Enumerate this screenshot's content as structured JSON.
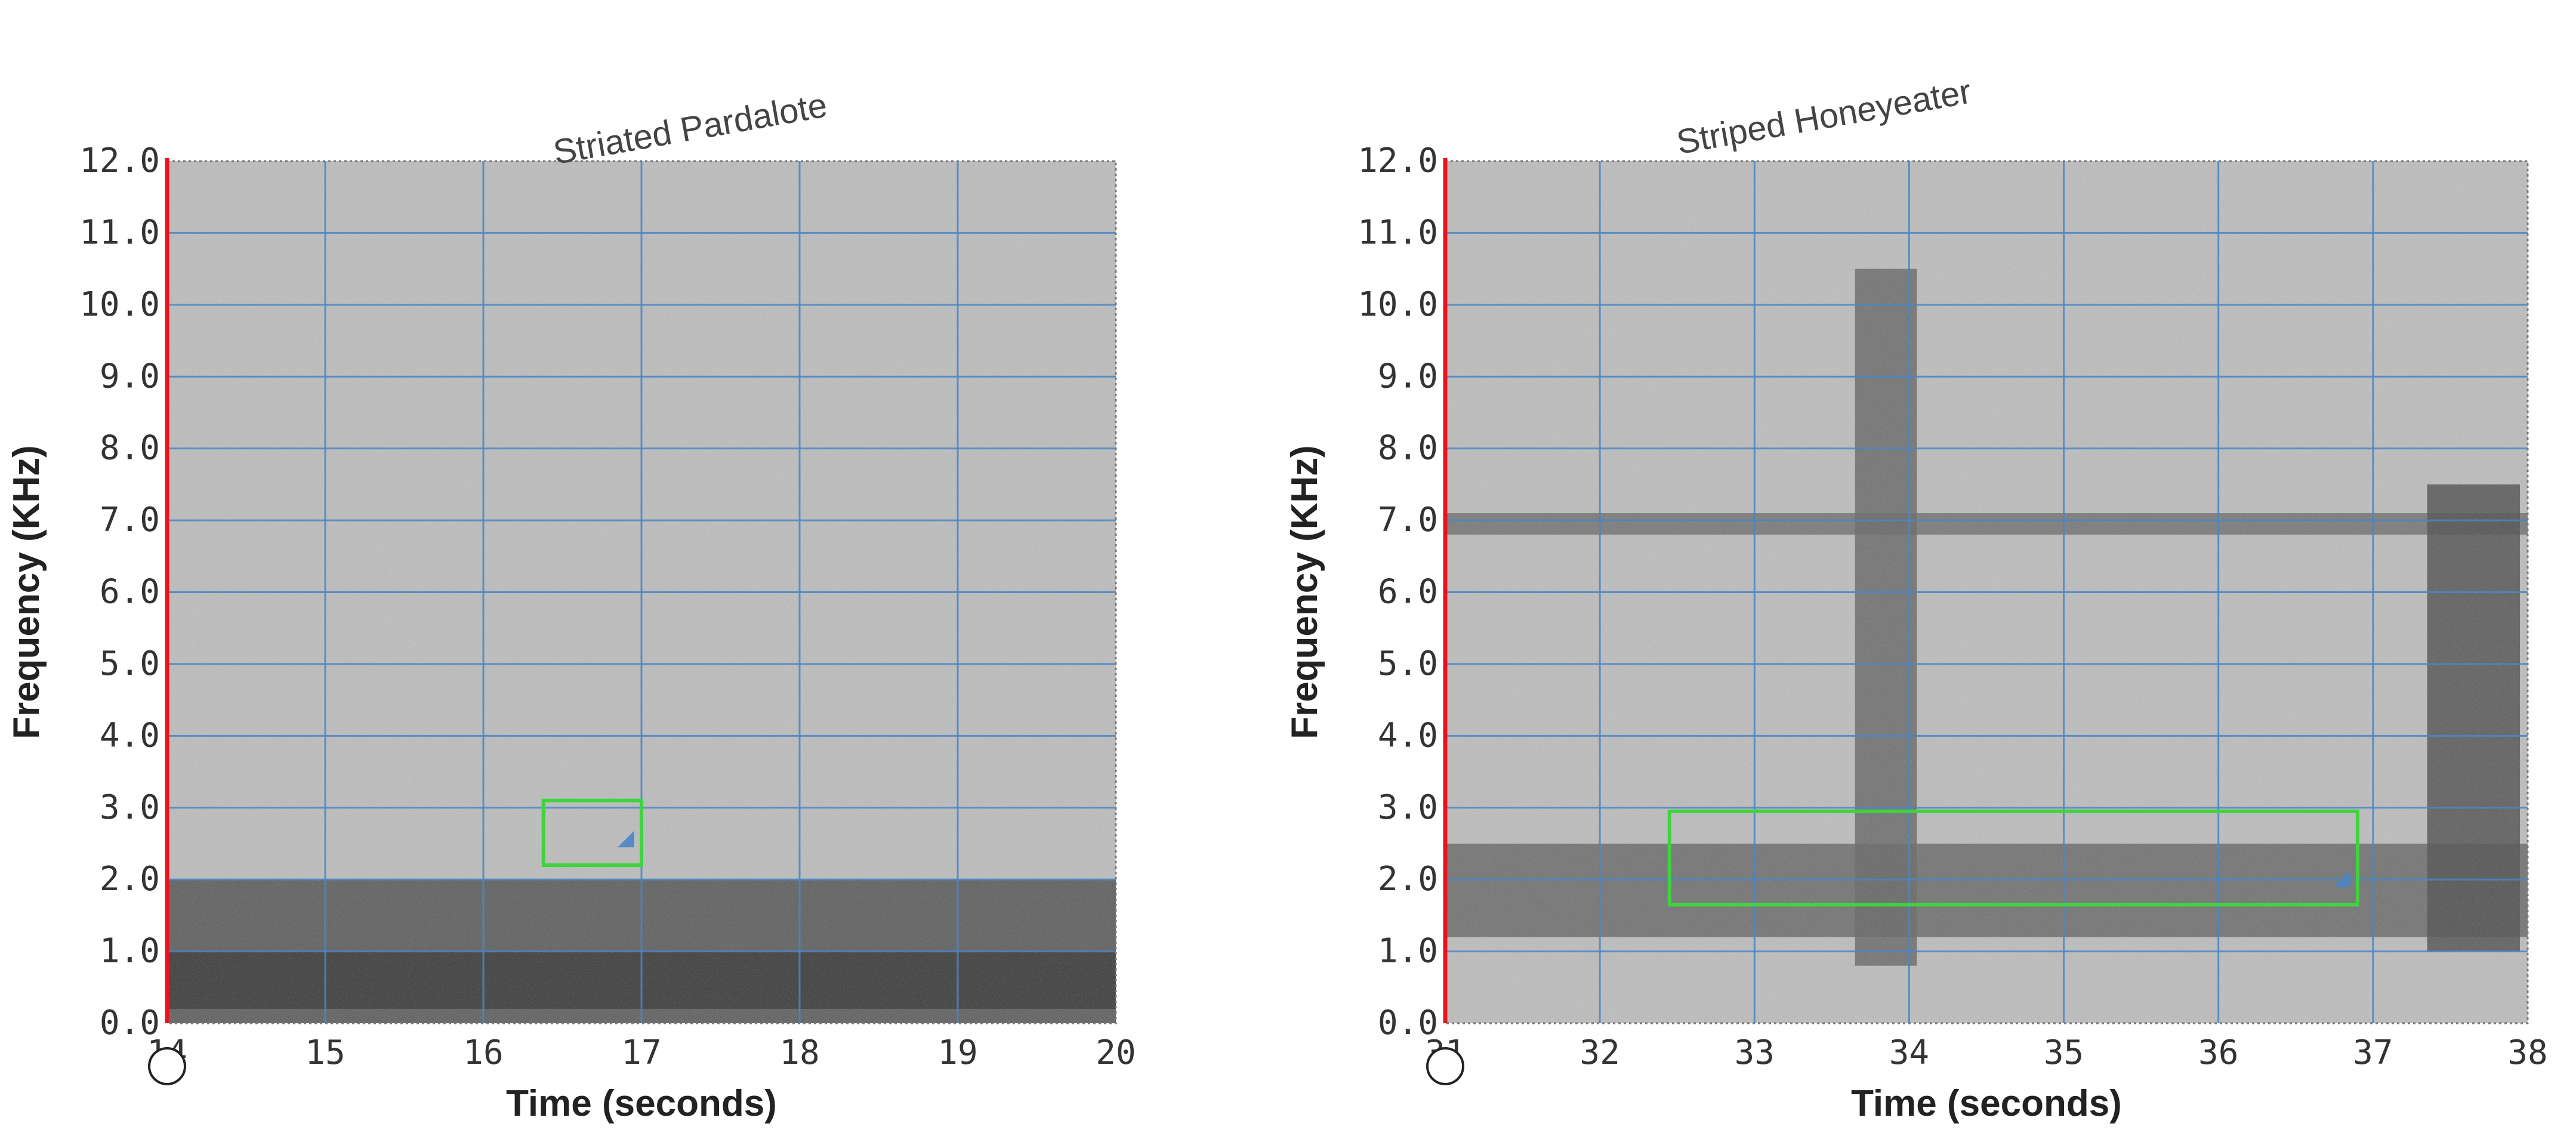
{
  "colors": {
    "grid": "#4a86c5",
    "playhead": "#e8141d",
    "annotation_box": "#3fd43f",
    "spectrogram_light": "#bdbdbd",
    "spectrogram_dark": "#2e2e2e"
  },
  "chart_data": [
    {
      "type": "heatmap",
      "title": "Striated Pardalote",
      "xlabel": "Time (seconds)",
      "ylabel": "Frequency (KHz)",
      "xlim": [
        14,
        20
      ],
      "ylim": [
        0,
        12
      ],
      "x_ticks": [
        "14",
        "15",
        "16",
        "17",
        "18",
        "19",
        "20"
      ],
      "y_ticks": [
        "0.0",
        "1.0",
        "2.0",
        "3.0",
        "4.0",
        "5.0",
        "6.0",
        "7.0",
        "8.0",
        "9.0",
        "10.0",
        "11.0",
        "12.0"
      ],
      "grid": true,
      "playhead_time": 14,
      "annotation": {
        "t_start": 16.38,
        "t_end": 17.0,
        "f_low": 2.2,
        "f_high": 3.1
      },
      "energy_bands": [
        {
          "t_start": 14,
          "t_end": 20,
          "f_low": 0.0,
          "f_high": 2.0,
          "intensity": 0.75
        },
        {
          "t_start": 14,
          "t_end": 20,
          "f_low": 0.2,
          "f_high": 1.0,
          "intensity": 0.9
        }
      ]
    },
    {
      "type": "heatmap",
      "title": "Striped Honeyeater",
      "xlabel": "Time (seconds)",
      "ylabel": "Frequency (KHz)",
      "xlim": [
        31,
        38
      ],
      "ylim": [
        0,
        12
      ],
      "x_ticks": [
        "31",
        "32",
        "33",
        "34",
        "35",
        "36",
        "37",
        "38"
      ],
      "y_ticks": [
        "0.0",
        "1.0",
        "2.0",
        "3.0",
        "4.0",
        "5.0",
        "6.0",
        "7.0",
        "8.0",
        "9.0",
        "10.0",
        "11.0",
        "12.0"
      ],
      "grid": true,
      "playhead_time": 31,
      "annotation": {
        "t_start": 32.45,
        "t_end": 36.9,
        "f_low": 1.65,
        "f_high": 2.95
      },
      "energy_bands": [
        {
          "t_start": 31,
          "t_end": 38,
          "f_low": 6.8,
          "f_high": 7.1,
          "intensity": 0.55
        },
        {
          "t_start": 31,
          "t_end": 38,
          "f_low": 1.2,
          "f_high": 2.5,
          "intensity": 0.6
        },
        {
          "t_start": 33.65,
          "t_end": 34.05,
          "f_low": 0.8,
          "f_high": 10.5,
          "intensity": 0.6
        },
        {
          "t_start": 37.35,
          "t_end": 37.95,
          "f_low": 1.0,
          "f_high": 7.5,
          "intensity": 0.75
        }
      ]
    }
  ]
}
